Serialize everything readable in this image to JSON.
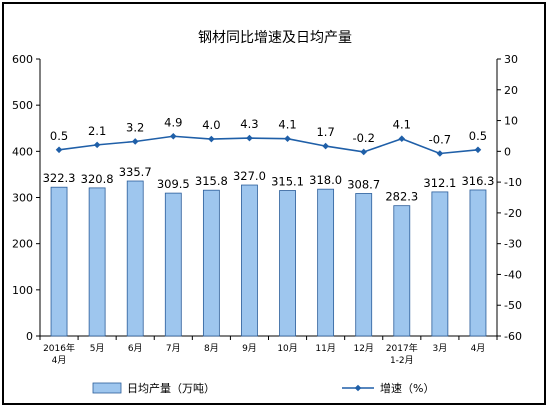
{
  "chart_data": {
    "type": "bar+line",
    "title": "钢材同比增速及日均产量",
    "categories": [
      [
        "2016年",
        "4月"
      ],
      [
        "5月"
      ],
      [
        "6月"
      ],
      [
        "7月"
      ],
      [
        "8月"
      ],
      [
        "9月"
      ],
      [
        "10月"
      ],
      [
        "11月"
      ],
      [
        "12月"
      ],
      [
        "2017年",
        "1-2月"
      ],
      [
        "3月"
      ],
      [
        "4月"
      ]
    ],
    "series": [
      {
        "name": "日均产量（万吨）",
        "type": "bar",
        "axis": "left",
        "values": [
          322.3,
          320.8,
          335.7,
          309.5,
          315.8,
          327.0,
          315.1,
          318.0,
          308.7,
          282.3,
          312.1,
          316.3
        ],
        "labels": [
          "322.3",
          "320.8",
          "335.7",
          "309.5",
          "315.8",
          "327.0",
          "315.1",
          "318.0",
          "308.7",
          "282.3",
          "312.1",
          "316.3"
        ]
      },
      {
        "name": "增速（%）",
        "type": "line",
        "axis": "right",
        "values": [
          0.5,
          2.1,
          3.2,
          4.9,
          4.0,
          4.3,
          4.1,
          1.7,
          -0.2,
          4.1,
          -0.7,
          0.5
        ],
        "labels": [
          "0.5",
          "2.1",
          "3.2",
          "4.9",
          "4.0",
          "4.3",
          "4.1",
          "1.7",
          "-0.2",
          "4.1",
          "-0.7",
          "0.5"
        ]
      }
    ],
    "y_left": {
      "min": 0,
      "max": 600,
      "ticks": [
        "0",
        "100",
        "200",
        "300",
        "400",
        "500",
        "600"
      ]
    },
    "y_right": {
      "min": -60,
      "max": 30,
      "ticks": [
        "-60",
        "-50",
        "-40",
        "-30",
        "-20",
        "-10",
        "0",
        "10",
        "20",
        "30"
      ]
    },
    "legend_position": "bottom",
    "grid": false,
    "colors": {
      "bar_fill": "#9ec6ee",
      "bar_stroke": "#2a5d9a",
      "line": "#1f5fa8",
      "axis": "#000000"
    }
  }
}
